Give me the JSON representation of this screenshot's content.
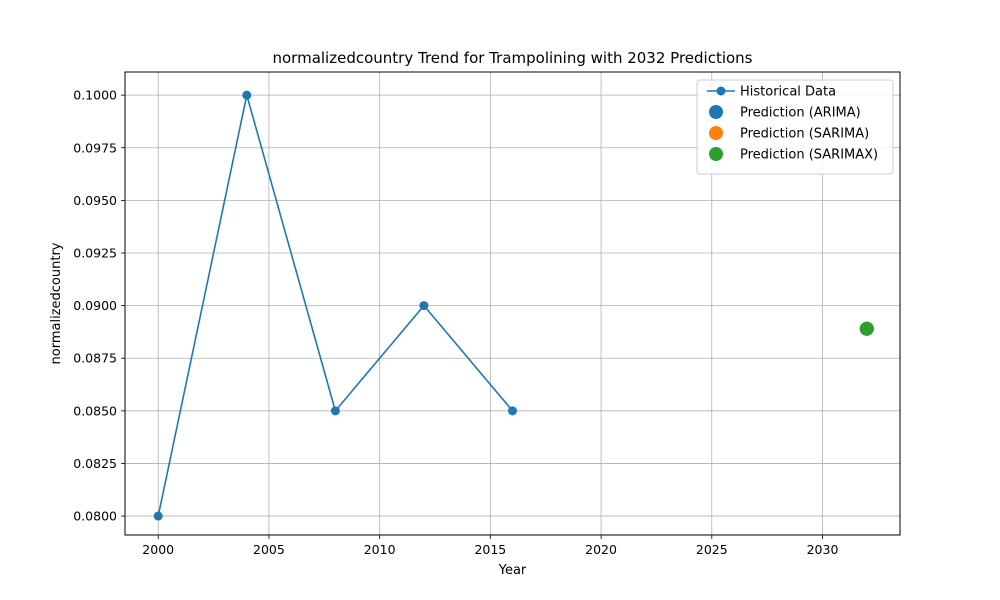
{
  "chart_data": {
    "type": "line",
    "title": "normalizedcountry Trend for Trampolining with 2032 Predictions",
    "xlabel": "Year",
    "ylabel": "normalizedcountry",
    "xlim": [
      1998.5,
      2033.5
    ],
    "ylim": [
      0.0791,
      0.1011
    ],
    "xticks": [
      2000,
      2005,
      2010,
      2015,
      2020,
      2025,
      2030
    ],
    "yticks": [
      0.08,
      0.0825,
      0.085,
      0.0875,
      0.09,
      0.0925,
      0.095,
      0.0975,
      0.1
    ],
    "ytick_labels": [
      "0.0800",
      "0.0825",
      "0.0850",
      "0.0875",
      "0.0900",
      "0.0925",
      "0.0950",
      "0.0975",
      "0.1000"
    ],
    "grid": true,
    "legend_position": "top-right",
    "series": [
      {
        "name": "Historical Data",
        "kind": "line-marker",
        "color": "#1f77b4",
        "x": [
          2000,
          2004,
          2008,
          2012,
          2016
        ],
        "y": [
          0.08,
          0.1,
          0.085,
          0.09,
          0.085
        ]
      },
      {
        "name": "Prediction (ARIMA)",
        "kind": "point",
        "color": "#1f77b4",
        "x": [
          2032
        ],
        "y": [
          0.0889
        ]
      },
      {
        "name": "Prediction (SARIMA)",
        "kind": "point",
        "color": "#ff7f0e",
        "x": [
          2032
        ],
        "y": [
          0.0889
        ]
      },
      {
        "name": "Prediction (SARIMAX)",
        "kind": "point",
        "color": "#2ca02c",
        "x": [
          2032
        ],
        "y": [
          0.0889
        ]
      }
    ]
  }
}
